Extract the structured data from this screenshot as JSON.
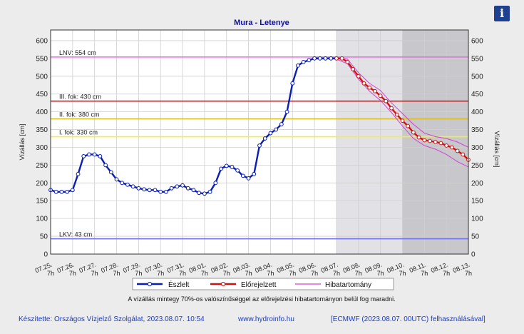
{
  "info_icon": "info-icon",
  "footer": {
    "left": "Készítette: Országos Vízjelző Szolgálat, 2023.08.07. 10:54",
    "mid": "www.hydroinfo.hu",
    "right": "[ECMWF (2023.08.07. 00UTC) felhasználásával]"
  },
  "chart_data": {
    "type": "line",
    "title": "Mura - Letenye",
    "ylabel": "Vízállás [cm]",
    "ylabel_right": "Vízállás [cm]",
    "ylim": [
      0,
      630
    ],
    "yticks": [
      0,
      50,
      100,
      150,
      200,
      250,
      300,
      350,
      400,
      450,
      500,
      550,
      600
    ],
    "grid": true,
    "legend_position": "bottom",
    "note": "A vízállás mintegy 70%-os valószínűséggel az előrejelzési hibatartományon belül fog maradni.",
    "x_labels": [
      {
        "date": "07.25.",
        "hour": "7h"
      },
      {
        "date": "07.26.",
        "hour": "7h"
      },
      {
        "date": "07.27.",
        "hour": "7h"
      },
      {
        "date": "07.28.",
        "hour": "7h"
      },
      {
        "date": "07.29.",
        "hour": "7h"
      },
      {
        "date": "07.30.",
        "hour": "7h"
      },
      {
        "date": "07.31.",
        "hour": "7h"
      },
      {
        "date": "08.01.",
        "hour": "7h"
      },
      {
        "date": "08.02.",
        "hour": "7h"
      },
      {
        "date": "08.03.",
        "hour": "7h"
      },
      {
        "date": "08.04.",
        "hour": "7h"
      },
      {
        "date": "08.05.",
        "hour": "7h"
      },
      {
        "date": "08.06.",
        "hour": "7h"
      },
      {
        "date": "08.07.",
        "hour": "7h"
      },
      {
        "date": "08.08.",
        "hour": "7h"
      },
      {
        "date": "08.09.",
        "hour": "7h"
      },
      {
        "date": "08.10.",
        "hour": "7h"
      },
      {
        "date": "08.11.",
        "hour": "7h"
      },
      {
        "date": "08.12.",
        "hour": "7h"
      },
      {
        "date": "08.13.",
        "hour": "7h"
      }
    ],
    "thresholds": [
      {
        "label": "LNV: 554 cm",
        "value": 554,
        "color": "#e070e0"
      },
      {
        "label": "III. fok: 430 cm",
        "value": 430,
        "color": "#e01818"
      },
      {
        "label": "II. fok: 380 cm",
        "value": 380,
        "color": "#d8c020"
      },
      {
        "label": "I. fok: 330 cm",
        "value": 330,
        "color": "#f0f040"
      },
      {
        "label": "LKV: 43 cm",
        "value": 43,
        "color": "#7070f0"
      }
    ],
    "shaded_regions": [
      {
        "from": 13,
        "to": 16,
        "color": "#e2e2e6"
      },
      {
        "from": 16,
        "to": 19,
        "color": "#c8c8cc"
      }
    ],
    "series": [
      {
        "name": "Észlelt",
        "color": "#0a1eb4",
        "x": [
          0,
          0.25,
          0.5,
          0.75,
          1,
          1.25,
          1.5,
          1.75,
          2,
          2.25,
          2.5,
          2.75,
          3,
          3.25,
          3.5,
          3.75,
          4,
          4.25,
          4.5,
          4.75,
          5,
          5.25,
          5.5,
          5.75,
          6,
          6.25,
          6.5,
          6.75,
          7,
          7.25,
          7.5,
          7.75,
          8,
          8.25,
          8.5,
          8.75,
          9,
          9.25,
          9.5,
          9.75,
          10,
          10.25,
          10.5,
          10.75,
          11,
          11.25,
          11.5,
          11.75,
          12,
          12.25,
          12.5,
          12.75,
          13
        ],
        "y": [
          180,
          175,
          175,
          175,
          180,
          225,
          275,
          280,
          280,
          275,
          250,
          230,
          210,
          200,
          195,
          190,
          185,
          182,
          180,
          180,
          175,
          175,
          185,
          190,
          193,
          185,
          180,
          172,
          170,
          175,
          200,
          240,
          248,
          245,
          235,
          220,
          213,
          225,
          305,
          325,
          340,
          350,
          365,
          400,
          480,
          530,
          540,
          545,
          550,
          550,
          550,
          550,
          550
        ]
      },
      {
        "name": "Előrejelzett",
        "color": "#c81414",
        "x": [
          13,
          13.25,
          13.5,
          13.75,
          14,
          14.25,
          14.5,
          14.75,
          15,
          15.25,
          15.5,
          15.75,
          16,
          16.25,
          16.5,
          16.75,
          17,
          17.25,
          17.5,
          17.75,
          18,
          18.25,
          18.5,
          18.75,
          19
        ],
        "y": [
          550,
          550,
          540,
          520,
          500,
          480,
          468,
          458,
          445,
          430,
          410,
          392,
          375,
          360,
          342,
          328,
          320,
          318,
          315,
          312,
          305,
          300,
          290,
          280,
          265
        ]
      },
      {
        "name": "Hibatartomány",
        "color": "#d040d0",
        "x": [
          13,
          13.5,
          14,
          14.5,
          15,
          15.5,
          16,
          16.5,
          17,
          17.5,
          18,
          18.5,
          19
        ],
        "upper": [
          552,
          548,
          510,
          480,
          460,
          425,
          395,
          365,
          340,
          330,
          325,
          315,
          300
        ],
        "lower": [
          548,
          535,
          492,
          458,
          432,
          398,
          360,
          325,
          305,
          295,
          280,
          260,
          245
        ]
      }
    ]
  }
}
